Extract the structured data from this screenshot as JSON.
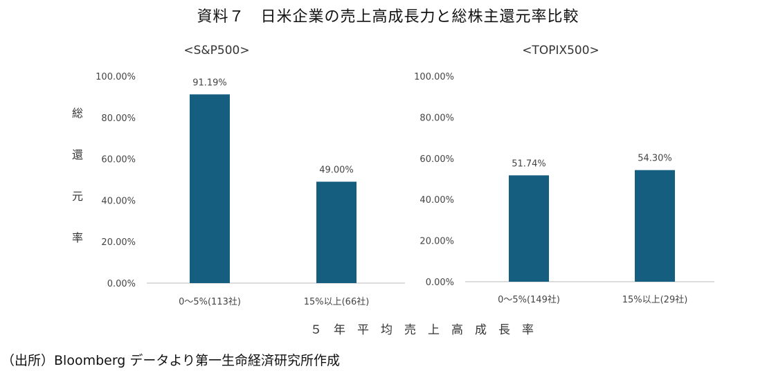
{
  "title": "資料７　日米企業の売上高成長力と総株主還元率比較",
  "ylabel": "総還元率",
  "xlabel": "５年平均売上高成長率",
  "source": "（出所）Bloomberg データより第一生命経済研究所作成",
  "colors": {
    "bar": "#155e80",
    "axis": "#d0d0d0",
    "text": "#444444"
  },
  "chart_data": [
    {
      "type": "bar",
      "title": "<S&P500>",
      "categories": [
        "0～5%(113社)",
        "15%以上(66社)"
      ],
      "values": [
        91.19,
        49.0
      ],
      "data_labels": [
        "91.19%",
        "49.00%"
      ],
      "ylim": [
        0,
        100
      ],
      "yticks": [
        "0.00%",
        "20.00%",
        "40.00%",
        "60.00%",
        "80.00%",
        "100.00%"
      ],
      "grid": false
    },
    {
      "type": "bar",
      "title": "<TOPIX500>",
      "categories": [
        "0～5%(149社)",
        "15%以上(29社)"
      ],
      "values": [
        51.74,
        54.3
      ],
      "data_labels": [
        "51.74%",
        "54.30%"
      ],
      "ylim": [
        0,
        100
      ],
      "yticks": [
        "0.00%",
        "20.00%",
        "40.00%",
        "60.00%",
        "80.00%",
        "100.00%"
      ],
      "grid": false
    }
  ]
}
